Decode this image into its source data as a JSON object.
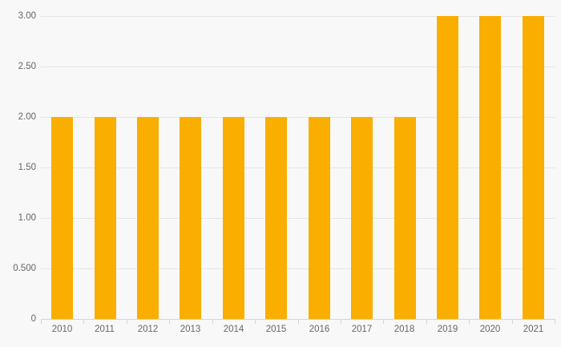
{
  "chart_data": {
    "type": "bar",
    "title": "",
    "xlabel": "",
    "ylabel": "",
    "categories": [
      "2010",
      "2011",
      "2012",
      "2013",
      "2014",
      "2015",
      "2016",
      "2017",
      "2018",
      "2019",
      "2020",
      "2021"
    ],
    "values": [
      2.0,
      2.0,
      2.0,
      2.0,
      2.0,
      2.0,
      2.0,
      2.0,
      2.0,
      3.0,
      3.0,
      3.0
    ],
    "ylim": [
      0,
      3
    ],
    "yticks": [
      {
        "value": 0,
        "label": "0"
      },
      {
        "value": 0.5,
        "label": "0.500"
      },
      {
        "value": 1,
        "label": "1.00"
      },
      {
        "value": 1.5,
        "label": "1.50"
      },
      {
        "value": 2,
        "label": "2.00"
      },
      {
        "value": 2.5,
        "label": "2.50"
      },
      {
        "value": 3,
        "label": "3.00"
      }
    ],
    "grid": true,
    "legend": "none"
  },
  "colors": {
    "background": "#F8F8F8",
    "bar": "#F9AE00",
    "gridline": "#E6E6E6",
    "axis_line": "#CCD6EB",
    "tick": "#CCD6EB",
    "label_text": "#666666"
  }
}
